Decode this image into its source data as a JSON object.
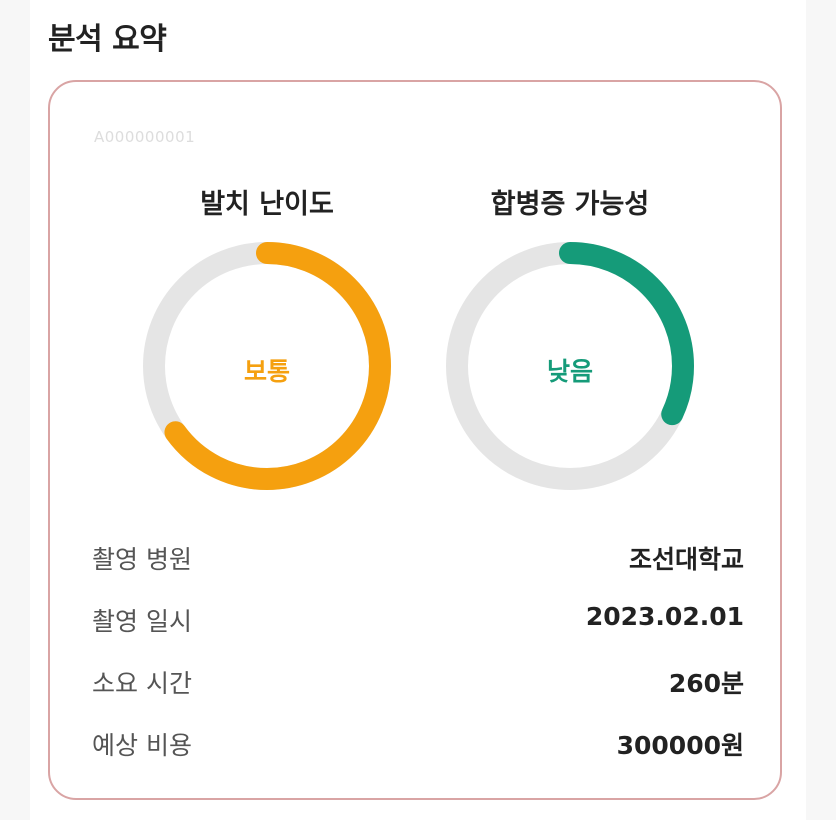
{
  "section_title": "분석 요약",
  "card": {
    "id_text": "A000000001",
    "gauges": [
      {
        "title": "발치 난이도",
        "value": "보통",
        "level": 0.65,
        "color": "#f5a00f"
      },
      {
        "title": "합병증 가능성",
        "value": "낮음",
        "level": 0.32,
        "color": "#159b79"
      }
    ],
    "track_color": "#e5e5e5",
    "info": [
      {
        "label": "촬영 병원",
        "value": "조선대학교"
      },
      {
        "label": "촬영 일시",
        "value": "2023.02.01"
      },
      {
        "label": "소요 시간",
        "value": "260분"
      },
      {
        "label": "예상 비용",
        "value": "300000원"
      }
    ]
  }
}
